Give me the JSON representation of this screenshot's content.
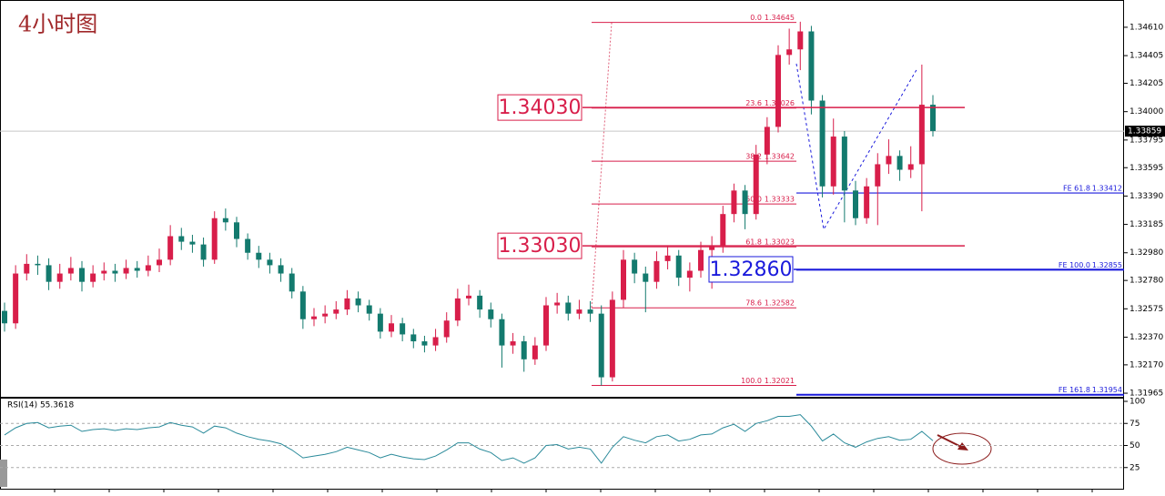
{
  "chart_data": {
    "type": "candlestick",
    "title": "4小时图",
    "up_color": "#d81e4a",
    "down_color": "#137a6e",
    "open": [
      1.3256,
      1.3247,
      1.3283,
      1.329,
      1.3289,
      1.3277,
      1.3283,
      1.3287,
      1.3277,
      1.3283,
      1.3285,
      1.3283,
      1.3287,
      1.3285,
      1.3289,
      1.3293,
      1.331,
      1.3306,
      1.3304,
      1.3293,
      1.3323,
      1.332,
      1.3308,
      1.3298,
      1.3293,
      1.3289,
      1.3283,
      1.327,
      1.325,
      1.3252,
      1.3254,
      1.3257,
      1.3265,
      1.326,
      1.3254,
      1.3241,
      1.3247,
      1.3239,
      1.3234,
      1.3231,
      1.3237,
      1.3249,
      1.3265,
      1.3267,
      1.3257,
      1.325,
      1.3231,
      1.3234,
      1.3221,
      1.3231,
      1.326,
      1.3262,
      1.3254,
      1.3257,
      1.3254,
      1.3208,
      1.3264,
      1.3293,
      1.3283,
      1.3277,
      1.3292,
      1.3296,
      1.328,
      1.3285,
      1.33,
      1.3303,
      1.3326,
      1.3343,
      1.3326,
      1.3369,
      1.3389,
      1.3441,
      1.3445,
      1.3458,
      1.3408,
      1.3346,
      1.3382,
      1.3343,
      1.3323,
      1.3346,
      1.3362,
      1.3368,
      1.3358,
      1.3362,
      1.3405
    ],
    "high": [
      1.3262,
      1.3289,
      1.3297,
      1.3296,
      1.3294,
      1.329,
      1.3295,
      1.3292,
      1.3289,
      1.3291,
      1.329,
      1.3293,
      1.3292,
      1.3296,
      1.3301,
      1.3318,
      1.3316,
      1.3311,
      1.3309,
      1.3328,
      1.333,
      1.3324,
      1.3312,
      1.3303,
      1.3298,
      1.3294,
      1.3287,
      1.3274,
      1.3258,
      1.326,
      1.3263,
      1.3271,
      1.327,
      1.3264,
      1.3258,
      1.3253,
      1.3251,
      1.3243,
      1.3238,
      1.3243,
      1.3255,
      1.3272,
      1.3275,
      1.3271,
      1.3262,
      1.3254,
      1.324,
      1.3238,
      1.3237,
      1.3266,
      1.3269,
      1.3267,
      1.3264,
      1.3263,
      1.326,
      1.327,
      1.33,
      1.3298,
      1.3288,
      1.3299,
      1.3303,
      1.33,
      1.3291,
      1.3306,
      1.331,
      1.3332,
      1.3348,
      1.3347,
      1.3376,
      1.3396,
      1.3448,
      1.346,
      1.3465,
      1.3462,
      1.3412,
      1.3395,
      1.3386,
      1.335,
      1.3352,
      1.337,
      1.338,
      1.3372,
      1.3375,
      1.3434,
      1.3412
    ],
    "low": [
      1.3241,
      1.3243,
      1.3278,
      1.3282,
      1.3271,
      1.3272,
      1.3278,
      1.327,
      1.3273,
      1.3278,
      1.3277,
      1.3279,
      1.328,
      1.3281,
      1.3284,
      1.3289,
      1.33,
      1.3298,
      1.3288,
      1.329,
      1.3314,
      1.3302,
      1.3293,
      1.3287,
      1.3283,
      1.3277,
      1.3265,
      1.3243,
      1.3245,
      1.3247,
      1.325,
      1.3253,
      1.3255,
      1.3249,
      1.3236,
      1.3237,
      1.3234,
      1.3229,
      1.3226,
      1.3227,
      1.3233,
      1.3245,
      1.326,
      1.3251,
      1.3244,
      1.3215,
      1.3225,
      1.3212,
      1.3217,
      1.3227,
      1.3254,
      1.3249,
      1.325,
      1.3248,
      1.3202,
      1.3205,
      1.3258,
      1.3276,
      1.3255,
      1.3272,
      1.3286,
      1.3274,
      1.327,
      1.328,
      1.3272,
      1.3298,
      1.332,
      1.3315,
      1.3322,
      1.3362,
      1.3385,
      1.3434,
      1.343,
      1.3398,
      1.3338,
      1.334,
      1.332,
      1.3318,
      1.3319,
      1.3318,
      1.3355,
      1.335,
      1.3352,
      1.3328,
      1.3382
    ],
    "close": [
      1.3247,
      1.3283,
      1.329,
      1.3289,
      1.3277,
      1.3283,
      1.3287,
      1.3277,
      1.3283,
      1.3285,
      1.3283,
      1.3287,
      1.3285,
      1.3289,
      1.3293,
      1.331,
      1.3306,
      1.3304,
      1.3293,
      1.3323,
      1.332,
      1.3308,
      1.3298,
      1.3293,
      1.3289,
      1.3283,
      1.327,
      1.325,
      1.3252,
      1.3254,
      1.3257,
      1.3265,
      1.326,
      1.3254,
      1.3241,
      1.3247,
      1.3239,
      1.3234,
      1.3231,
      1.3237,
      1.3249,
      1.3265,
      1.3267,
      1.3257,
      1.325,
      1.3231,
      1.3234,
      1.3221,
      1.3231,
      1.326,
      1.3262,
      1.3254,
      1.3257,
      1.3254,
      1.3208,
      1.3264,
      1.3293,
      1.3283,
      1.3277,
      1.3292,
      1.3296,
      1.328,
      1.3285,
      1.33,
      1.3303,
      1.3326,
      1.3343,
      1.3326,
      1.3369,
      1.3389,
      1.3441,
      1.3445,
      1.3458,
      1.3408,
      1.3346,
      1.3382,
      1.3343,
      1.3323,
      1.3346,
      1.3362,
      1.3368,
      1.3358,
      1.3362,
      1.3405,
      1.3386
    ],
    "ylim": [
      1.31939,
      1.34807
    ],
    "yticks": [
      {
        "value": 1.3461,
        "label": "1.34610"
      },
      1.34405,
      1.34205,
      {
        "value": 1.34,
        "label": "1.34000"
      },
      1.33795,
      1.33595,
      {
        "value": 1.3339,
        "label": "1.33390"
      },
      1.33185,
      {
        "value": 1.3298,
        "label": "1.32980"
      },
      {
        "value": 1.3278,
        "label": "1.32780"
      },
      1.32575,
      {
        "value": 1.3237,
        "label": "1.32370"
      },
      {
        "value": 1.3217,
        "label": "1.32170"
      },
      1.31965
    ],
    "current_price": 1.33859,
    "fibonacci": [
      {
        "level": "0.0",
        "price": 1.34645
      },
      {
        "level": "23.6",
        "price": 1.34026
      },
      {
        "level": "38.2",
        "price": 1.33642
      },
      {
        "level": "50.0",
        "price": 1.33333
      },
      {
        "level": "61.8",
        "price": 1.33023
      },
      {
        "level": "78.6",
        "price": 1.32582
      },
      {
        "level": "100.0",
        "price": 1.32021
      }
    ],
    "fibonacci_expansion": [
      {
        "level": "FE 61.8",
        "price": 1.33412
      },
      {
        "level": "FE 100.0",
        "price": 1.32855
      },
      {
        "level": "FE 161.8",
        "price": 1.31954
      }
    ],
    "annotations": [
      {
        "label": "1.34030",
        "value": 1.3403,
        "color": "#d81e4a"
      },
      {
        "label": "1.33030",
        "value": 1.3303,
        "color": "#d81e4a"
      },
      {
        "label": "1.32860",
        "value": 1.3286,
        "color": "#1a1adc"
      }
    ],
    "rsi": {
      "label": "RSI(14) 55.3618",
      "color": "#2a8a9a",
      "values": [
        62,
        70,
        75,
        76,
        70,
        72,
        73,
        66,
        68,
        69,
        67,
        69,
        68,
        70,
        71,
        76,
        73,
        71,
        64,
        72,
        70,
        64,
        60,
        57,
        55,
        52,
        45,
        36,
        38,
        40,
        43,
        48,
        45,
        42,
        36,
        40,
        37,
        35,
        34,
        38,
        45,
        53,
        53,
        46,
        42,
        33,
        36,
        30,
        36,
        50,
        51,
        46,
        48,
        46,
        30,
        48,
        60,
        56,
        53,
        60,
        62,
        55,
        57,
        62,
        63,
        70,
        74,
        66,
        75,
        78,
        83,
        83,
        85,
        72,
        55,
        63,
        53,
        48,
        54,
        58,
        60,
        56,
        57,
        66,
        55.3618
      ],
      "ylim": [
        0,
        100
      ],
      "yticks": [
        100,
        75,
        50,
        25
      ]
    }
  }
}
